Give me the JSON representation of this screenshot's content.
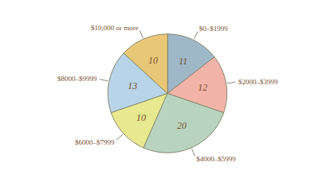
{
  "chart_data": {
    "type": "pie",
    "categories": [
      "$0–$1999",
      "$2000–$3999",
      "$4000–$5999",
      "$6000–$7999",
      "$8000–$9999",
      "$10,000 or more"
    ],
    "values": [
      11,
      12,
      20,
      10,
      13,
      10
    ],
    "colors": [
      "#9fb8c8",
      "#f2b4a8",
      "#b8d4be",
      "#e8e890",
      "#b8d4e8",
      "#e8c878"
    ],
    "data_labels": true,
    "tick_labels": false
  }
}
